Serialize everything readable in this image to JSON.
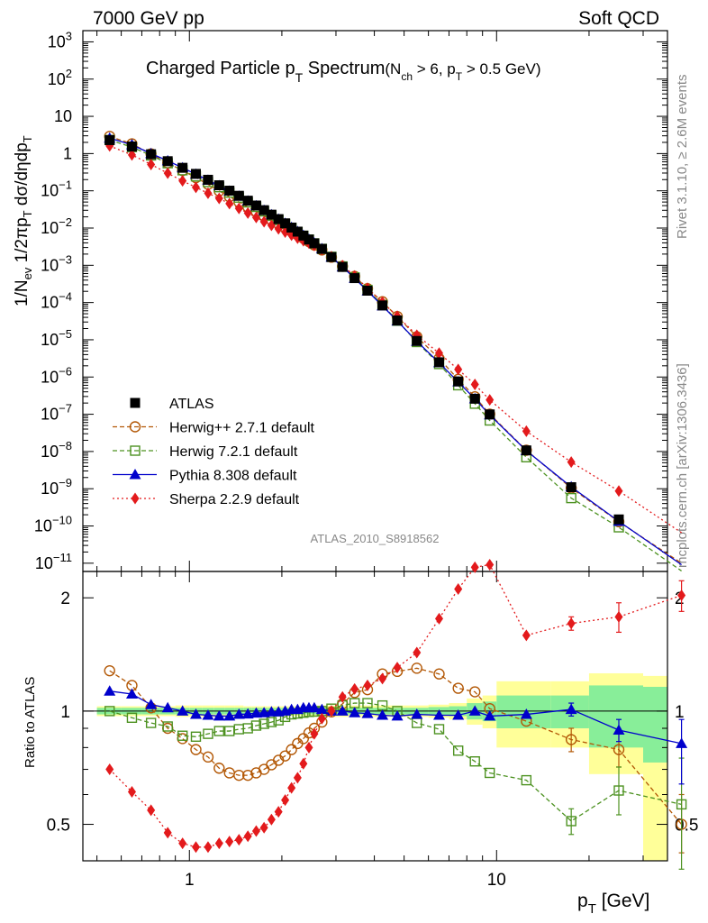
{
  "header": {
    "left": "7000 GeV pp",
    "right": "Soft QCD"
  },
  "title": {
    "main": "Charged Particle p",
    "main_sub": "T",
    "main_tail": " Spectrum",
    "cond": "(N",
    "cond_sub": "ch",
    "cond_mid": " > 6, p",
    "cond_sub2": "T",
    "cond_tail": " > 0.5 GeV)"
  },
  "watermark": "ATLAS_2010_S8918562",
  "side_labels": {
    "rivet": "Rivet 3.1.10, ≥ 2.6M events",
    "mcplots": "mcplots.cern.ch [arXiv:1306.3436]"
  },
  "axes": {
    "ylabel_top": "1/N_ev 1/2πp_T dσ/dηdp_T",
    "ylabel_bottom": "Ratio to ATLAS",
    "xlabel": "p_T  [GeV]",
    "x_ticks": [
      "1",
      "10"
    ],
    "ratio_ticks": [
      "0.5",
      "1",
      "2"
    ]
  },
  "chart_data": [
    {
      "type": "scatter",
      "x_scale": "log",
      "y_scale": "log",
      "xlim": [
        0.45,
        36
      ],
      "ylim": [
        6e-12,
        2000.0
      ],
      "y_tick_exponents": [
        -11,
        -10,
        -9,
        -8,
        -7,
        -6,
        -5,
        -4,
        -3,
        -2,
        -1,
        0,
        1,
        2,
        3
      ],
      "x": [
        0.55,
        0.65,
        0.75,
        0.85,
        0.95,
        1.05,
        1.15,
        1.25,
        1.35,
        1.45,
        1.55,
        1.65,
        1.75,
        1.85,
        1.95,
        2.05,
        2.15,
        2.25,
        2.35,
        2.45,
        2.55,
        2.7,
        2.9,
        3.15,
        3.45,
        3.8,
        4.25,
        4.75,
        5.5,
        6.5,
        7.5,
        8.5,
        9.5,
        12.5,
        17.5,
        25,
        40
      ],
      "series": [
        {
          "name": "ATLAS",
          "color": "#000000",
          "marker": "filled-square",
          "values": [
            2.3,
            1.55,
            0.96,
            0.625,
            0.415,
            0.285,
            0.198,
            0.141,
            0.101,
            0.0736,
            0.0543,
            0.0403,
            0.0302,
            0.0229,
            0.0174,
            0.0134,
            0.0103,
            0.00801,
            0.00627,
            0.00492,
            0.00389,
            0.00276,
            0.00166,
            0.000902,
            0.000452,
            0.000208,
            8.35e-05,
            3.3e-05,
            9.3e-06,
            2.49e-06,
            7.6e-07,
            2.61e-07,
            9.9e-08,
            1.07e-08,
            1.1e-09,
            1.5e-10,
            1.1e-11
          ]
        },
        {
          "name": "Herwig++ 2.7.1 default",
          "color": "#b35806",
          "marker": "open-circle",
          "values": [
            2.9,
            1.82,
            0.98,
            0.56,
            0.35,
            0.226,
            0.149,
            0.099,
            0.0695,
            0.0501,
            0.0367,
            0.0276,
            0.0211,
            0.0164,
            0.0129,
            0.0102,
            0.00817,
            0.00655,
            0.0053,
            0.0043,
            0.0035,
            0.00258,
            0.00165,
            0.000943,
            0.000505,
            0.000237,
            0.000105,
            4.21e-05,
            1.21e-05,
            3.13e-06,
            8.7e-07,
            2.94e-07,
            1.01e-07,
            1.08e-08,
            1.04e-09,
            1.3e-10,
            1e-11
          ]
        },
        {
          "name": "Herwig 7.2.1 default",
          "color": "#4d9221",
          "marker": "open-square",
          "values": [
            2.32,
            1.49,
            0.89,
            0.55,
            0.356,
            0.244,
            0.172,
            0.125,
            0.0895,
            0.0657,
            0.049,
            0.037,
            0.028,
            0.0214,
            0.0165,
            0.0129,
            0.0101,
            0.00789,
            0.00621,
            0.0049,
            0.00388,
            0.00276,
            0.00169,
            0.000931,
            0.000474,
            0.000218,
            8.65e-05,
            3.24e-05,
            8.68e-06,
            2.23e-06,
            6e-07,
            1.92e-07,
            6.8e-08,
            7e-09,
            5.6e-10,
            9.2e-11,
            6.2e-12
          ]
        },
        {
          "name": "Pythia 8.308 default",
          "color": "#0000cc",
          "marker": "filled-triangle",
          "values": [
            2.6,
            1.72,
            1.0,
            0.64,
            0.415,
            0.28,
            0.193,
            0.137,
            0.098,
            0.0721,
            0.0533,
            0.0398,
            0.0299,
            0.0228,
            0.0173,
            0.0134,
            0.0104,
            0.00807,
            0.00638,
            0.005,
            0.00396,
            0.00279,
            0.00166,
            0.000902,
            0.000447,
            0.000205,
            8.12e-05,
            3.2e-05,
            9.1e-06,
            2.42e-06,
            7.4e-07,
            2.6e-07,
            9.6e-08,
            1.05e-08,
            1.12e-09,
            1.33e-10,
            9.1e-12
          ]
        },
        {
          "name": "Sherpa 2.2.9 default",
          "color": "#e31a1c",
          "marker": "filled-diamond",
          "values": [
            1.61,
            0.92,
            0.51,
            0.297,
            0.185,
            0.124,
            0.086,
            0.0625,
            0.0455,
            0.0336,
            0.0253,
            0.0193,
            0.0148,
            0.0118,
            0.00955,
            0.00777,
            0.00645,
            0.00535,
            0.00455,
            0.00393,
            0.00339,
            0.00264,
            0.00171,
            0.000985,
            0.000519,
            0.000243,
            0.000102,
            4.3e-05,
            1.33e-05,
            4.37e-06,
            1.6e-06,
            6.3e-07,
            2.43e-07,
            3.5e-08,
            5.2e-09,
            8.7e-10,
            6.6e-11
          ]
        }
      ],
      "legend": "upper-left"
    },
    {
      "type": "scatter",
      "x_scale": "log",
      "y_scale": "log",
      "xlim": [
        0.45,
        36
      ],
      "ylim": [
        0.4,
        2.35
      ],
      "x": [
        0.55,
        0.65,
        0.75,
        0.85,
        0.95,
        1.05,
        1.15,
        1.25,
        1.35,
        1.45,
        1.55,
        1.65,
        1.75,
        1.85,
        1.95,
        2.05,
        2.15,
        2.25,
        2.35,
        2.45,
        2.55,
        2.7,
        2.9,
        3.15,
        3.45,
        3.8,
        4.25,
        4.75,
        5.5,
        6.5,
        7.5,
        8.5,
        9.5,
        12.5,
        17.5,
        25,
        40
      ],
      "series": [
        {
          "name": "Herwig++ 2.7.1 default",
          "values": [
            1.28,
            1.17,
            1.02,
            0.9,
            0.845,
            0.79,
            0.755,
            0.705,
            0.685,
            0.675,
            0.675,
            0.685,
            0.7,
            0.72,
            0.74,
            0.76,
            0.79,
            0.82,
            0.845,
            0.875,
            0.9,
            0.935,
            0.995,
            1.045,
            1.12,
            1.14,
            1.255,
            1.275,
            1.3,
            1.255,
            1.15,
            1.125,
            1.015,
            0.94,
            0.84,
            0.79,
            0.5
          ]
        },
        {
          "name": "Herwig 7.2.1 default",
          "values": [
            1.0,
            0.96,
            0.93,
            0.91,
            0.86,
            0.855,
            0.87,
            0.885,
            0.885,
            0.895,
            0.9,
            0.915,
            0.925,
            0.935,
            0.945,
            0.965,
            0.98,
            0.985,
            0.99,
            0.995,
            0.997,
            1.0,
            1.015,
            1.035,
            1.05,
            1.05,
            1.035,
            1.0,
            0.93,
            0.895,
            0.785,
            0.735,
            0.685,
            0.655,
            0.51,
            0.615,
            0.565
          ]
        },
        {
          "name": "Pythia 8.308 default",
          "values": [
            1.13,
            1.11,
            1.04,
            1.02,
            1.0,
            0.98,
            0.975,
            0.97,
            0.97,
            0.98,
            0.982,
            0.988,
            0.99,
            0.995,
            0.995,
            1.0,
            1.01,
            1.01,
            1.02,
            1.02,
            1.02,
            1.01,
            1.0,
            1.0,
            0.99,
            0.985,
            0.975,
            0.97,
            0.98,
            0.975,
            0.975,
            1.0,
            0.97,
            0.98,
            1.01,
            0.89,
            0.82
          ]
        },
        {
          "name": "Sherpa 2.2.9 default",
          "values": [
            0.7,
            0.61,
            0.545,
            0.475,
            0.445,
            0.435,
            0.435,
            0.445,
            0.45,
            0.455,
            0.465,
            0.48,
            0.49,
            0.515,
            0.54,
            0.58,
            0.625,
            0.665,
            0.725,
            0.8,
            0.87,
            0.955,
            1.0,
            1.09,
            1.145,
            1.17,
            1.22,
            1.305,
            1.43,
            1.76,
            2.11,
            2.41,
            2.45,
            1.59,
            1.71,
            1.78,
            2.03
          ]
        }
      ],
      "error_x": [
        17.5,
        25,
        40
      ],
      "error_ranges": {
        "Herwig++ 2.7.1 default": [
          [
            0.78,
            0.9
          ],
          [
            0.71,
            0.87
          ],
          [
            0.42,
            0.6
          ]
        ],
        "Herwig 7.2.1 default": [
          [
            0.47,
            0.55
          ],
          [
            0.53,
            0.71
          ],
          [
            0.38,
            0.75
          ]
        ],
        "Pythia 8.308 default": [
          [
            0.97,
            1.05
          ],
          [
            0.83,
            0.95
          ],
          [
            0.64,
            0.95
          ]
        ],
        "Sherpa 2.2.9 default": [
          [
            1.64,
            1.78
          ],
          [
            1.62,
            1.94
          ],
          [
            1.84,
            2.22
          ]
        ]
      },
      "reference_line": 1,
      "band_bins": [
        [
          0.5,
          0.6,
          0.97,
          1.03,
          0.98,
          1.02
        ],
        [
          0.6,
          0.7,
          0.97,
          1.03,
          0.98,
          1.02
        ],
        [
          0.7,
          0.8,
          0.97,
          1.03,
          0.98,
          1.02
        ],
        [
          0.8,
          0.9,
          0.97,
          1.03,
          0.98,
          1.02
        ],
        [
          0.9,
          1.0,
          0.965,
          1.035,
          0.98,
          1.02
        ],
        [
          1.0,
          1.1,
          0.965,
          1.035,
          0.98,
          1.02
        ],
        [
          1.1,
          1.2,
          0.965,
          1.035,
          0.98,
          1.02
        ],
        [
          1.2,
          1.3,
          0.965,
          1.035,
          0.98,
          1.02
        ],
        [
          1.3,
          1.4,
          0.965,
          1.035,
          0.98,
          1.02
        ],
        [
          1.4,
          1.5,
          0.965,
          1.035,
          0.98,
          1.02
        ],
        [
          1.5,
          1.6,
          0.97,
          1.03,
          0.98,
          1.02
        ],
        [
          1.6,
          1.7,
          0.97,
          1.03,
          0.98,
          1.02
        ],
        [
          1.7,
          1.8,
          0.97,
          1.03,
          0.98,
          1.02
        ],
        [
          1.8,
          1.9,
          0.97,
          1.03,
          0.98,
          1.02
        ],
        [
          1.9,
          2.0,
          0.97,
          1.03,
          0.98,
          1.02
        ],
        [
          2.0,
          2.1,
          0.97,
          1.03,
          0.98,
          1.02
        ],
        [
          2.1,
          2.2,
          0.97,
          1.03,
          0.98,
          1.02
        ],
        [
          2.2,
          2.3,
          0.97,
          1.03,
          0.98,
          1.02
        ],
        [
          2.3,
          2.4,
          0.97,
          1.03,
          0.98,
          1.02
        ],
        [
          2.4,
          2.5,
          0.97,
          1.03,
          0.98,
          1.02
        ],
        [
          2.5,
          2.6,
          0.965,
          1.035,
          0.98,
          1.02
        ],
        [
          2.6,
          2.8,
          0.965,
          1.035,
          0.98,
          1.02
        ],
        [
          2.8,
          3.0,
          0.965,
          1.035,
          0.98,
          1.02
        ],
        [
          3.0,
          3.3,
          0.965,
          1.035,
          0.98,
          1.02
        ],
        [
          3.3,
          3.6,
          0.965,
          1.035,
          0.98,
          1.02
        ],
        [
          3.6,
          4.0,
          0.965,
          1.035,
          0.98,
          1.02
        ],
        [
          4.0,
          4.5,
          0.965,
          1.035,
          0.98,
          1.02
        ],
        [
          4.5,
          5.0,
          0.965,
          1.035,
          0.98,
          1.02
        ],
        [
          5.0,
          6.0,
          0.965,
          1.035,
          0.98,
          1.02
        ],
        [
          6.0,
          7.0,
          0.96,
          1.04,
          0.975,
          1.025
        ],
        [
          7.0,
          8.0,
          0.95,
          1.05,
          0.97,
          1.03
        ],
        [
          8.0,
          9.0,
          0.92,
          1.08,
          0.95,
          1.05
        ],
        [
          9.0,
          10.0,
          0.9,
          1.1,
          0.94,
          1.06
        ],
        [
          10.0,
          15.0,
          0.8,
          1.2,
          0.9,
          1.1
        ],
        [
          15.0,
          20.0,
          0.8,
          1.2,
          0.9,
          1.1
        ],
        [
          20.0,
          30.0,
          0.68,
          1.26,
          0.8,
          1.17
        ],
        [
          30.0,
          50.0,
          0.36,
          1.24,
          0.73,
          1.16
        ]
      ]
    }
  ]
}
